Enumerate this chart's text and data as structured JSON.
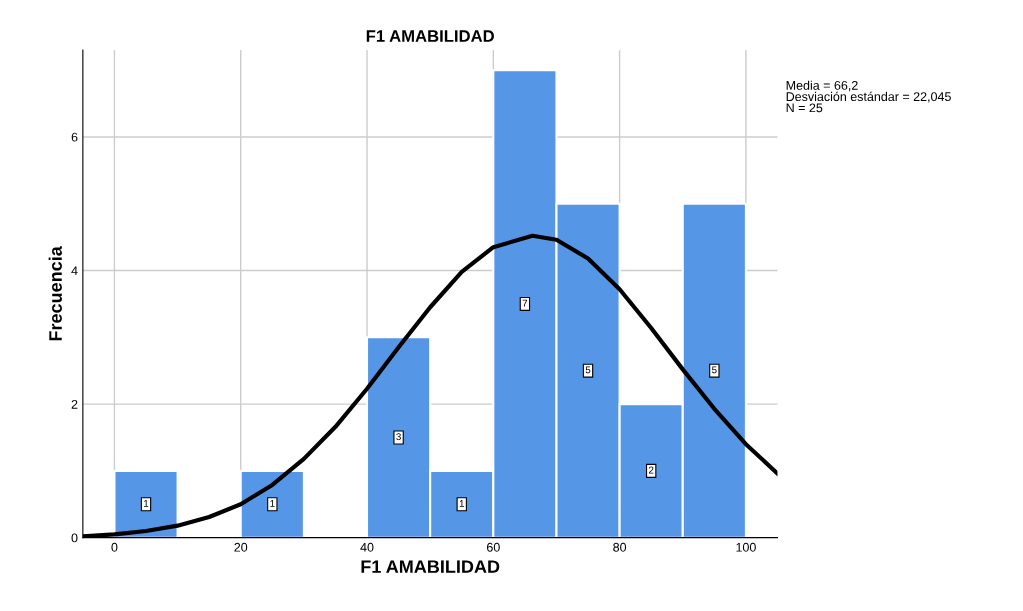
{
  "chart_data": {
    "type": "histogram",
    "title": "F1 AMABILIDAD",
    "xlabel": "F1 AMABILIDAD",
    "ylabel": "Frecuencia",
    "bins": [
      0,
      10,
      20,
      30,
      40,
      50,
      60,
      70,
      80,
      90,
      100
    ],
    "values": [
      1,
      0,
      1,
      0,
      3,
      1,
      7,
      5,
      2,
      5
    ],
    "color": "#5596e6",
    "value_labels": [
      "1",
      null,
      "1",
      null,
      "3",
      "1",
      "7",
      "5",
      "2",
      "5"
    ],
    "series": [
      {
        "type": "line",
        "color": "#000000",
        "x": [
          -5,
          0,
          5,
          10,
          15,
          20,
          25,
          30,
          35,
          40,
          45,
          50,
          55,
          60,
          66.2,
          70,
          75,
          80,
          85,
          90,
          95,
          100,
          105
        ],
        "values": [
          0.02,
          0.05,
          0.1,
          0.18,
          0.31,
          0.5,
          0.79,
          1.18,
          1.66,
          2.23,
          2.85,
          3.45,
          3.98,
          4.35,
          4.52,
          4.46,
          4.18,
          3.72,
          3.14,
          2.52,
          1.93,
          1.4,
          0.96
        ]
      }
    ],
    "xlim": [
      -5,
      105
    ],
    "xticks": [
      0,
      20,
      40,
      60,
      80,
      100
    ],
    "ylim": [
      0,
      7.3
    ],
    "yticks": [
      0,
      2,
      4,
      6
    ],
    "grid": true,
    "annotations": [
      "Media = 66,2\nDesviación estándar = 22,045\nN = 25"
    ]
  }
}
